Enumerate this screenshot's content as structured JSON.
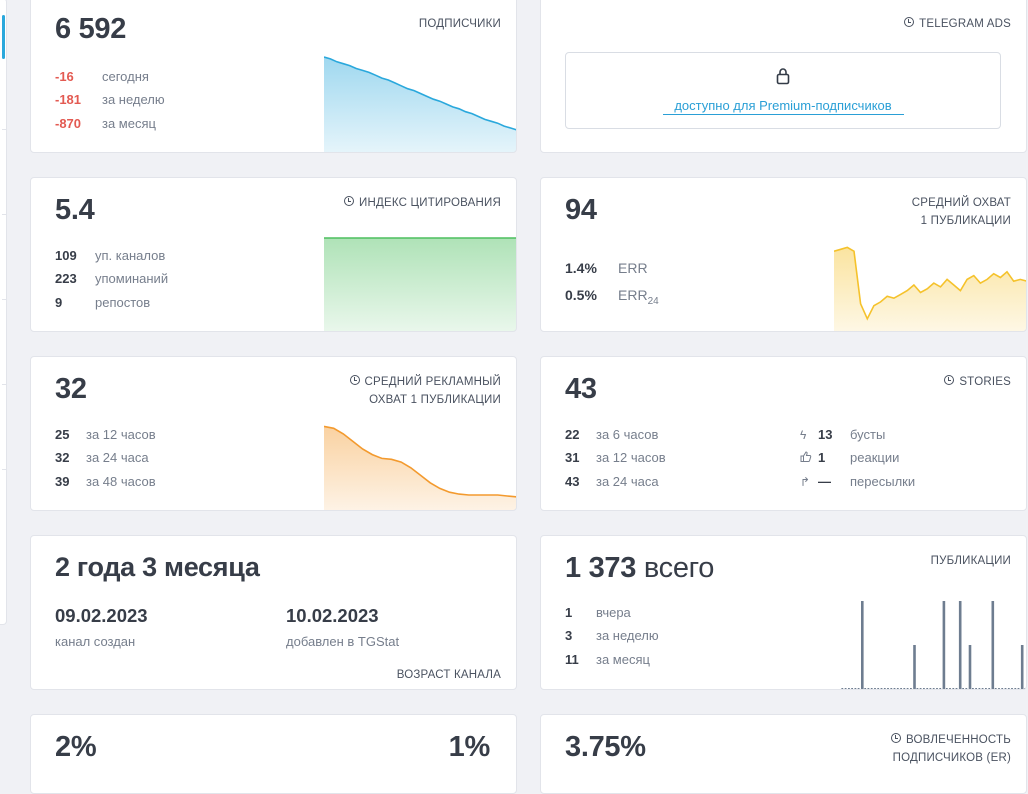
{
  "subscribers": {
    "value": "6 592",
    "tag": "ПОДПИСЧИКИ",
    "stats": [
      {
        "n": "-16",
        "label": "сегодня"
      },
      {
        "n": "-181",
        "label": "за неделю"
      },
      {
        "n": "-870",
        "label": "за месяц"
      }
    ],
    "color": "#2aa8dc"
  },
  "telegram_ads": {
    "tag": "TELEGRAM ADS",
    "lock_text": "доступно для Premium-подписчиков",
    "icon": "lock-icon"
  },
  "citation": {
    "value": "5.4",
    "tag": "ИНДЕКС ЦИТИРОВАНИЯ",
    "stats": [
      {
        "n": "109",
        "label": "уп. каналов"
      },
      {
        "n": "223",
        "label": "упоминаний"
      },
      {
        "n": "9",
        "label": "репостов"
      }
    ],
    "color": "#4dbf5f"
  },
  "avg_reach": {
    "value": "94",
    "tag_line1": "СРЕДНИЙ ОХВАТ",
    "tag_line2": "1 ПУБЛИКАЦИИ",
    "stats": [
      {
        "n": "1.4%",
        "label": "ERR"
      },
      {
        "n": "0.5%",
        "label": "ERR",
        "sub": "24"
      }
    ],
    "color": "#f5c22b"
  },
  "ad_reach": {
    "value": "32",
    "tag_line1": "СРЕДНИЙ РЕКЛАМНЫЙ",
    "tag_line2": "ОХВАТ 1 ПУБЛИКАЦИИ",
    "stats": [
      {
        "n": "25",
        "label": "за 12 часов"
      },
      {
        "n": "32",
        "label": "за 24 часа"
      },
      {
        "n": "39",
        "label": "за 48 часов"
      }
    ],
    "color": "#f39a2e"
  },
  "stories": {
    "value": "43",
    "tag": "STORIES",
    "stats": [
      {
        "n": "22",
        "label": "за 6 часов"
      },
      {
        "n": "31",
        "label": "за 12 часов"
      },
      {
        "n": "43",
        "label": "за 24 часа"
      }
    ],
    "extra": [
      {
        "icon": "lightning-icon",
        "n": "13",
        "label": "бусты"
      },
      {
        "icon": "thumbs-up-icon",
        "n": "1",
        "label": "реакции"
      },
      {
        "icon": "forward-arrow-icon",
        "n": "—",
        "label": "пересылки"
      }
    ]
  },
  "age": {
    "value": "2 года 3 месяца",
    "created_date": "09.02.2023",
    "created_label": "канал создан",
    "added_date": "10.02.2023",
    "added_label": "добавлен в TGStat",
    "tag": "ВОЗРАСТ КАНАЛА"
  },
  "posts": {
    "value": "1 373",
    "value_suffix": "всего",
    "tag": "ПУБЛИКАЦИИ",
    "stats": [
      {
        "n": "1",
        "label": "вчера"
      },
      {
        "n": "3",
        "label": "за неделю"
      },
      {
        "n": "11",
        "label": "за месяц"
      }
    ],
    "color": "#6e7d90"
  },
  "bottom_left": {
    "value_left": "2%",
    "value_right": "1%"
  },
  "engagement": {
    "value": "3.75%",
    "tag_line1": "ВОВЛЕЧЕННОСТЬ",
    "tag_line2": "ПОДПИСЧИКОВ (ER)"
  },
  "chart_data": [
    {
      "type": "area",
      "title": "",
      "series": [
        {
          "values": [
            100,
            98,
            95,
            93,
            91,
            88,
            86,
            84,
            81,
            78,
            76,
            73,
            70,
            67,
            65,
            62,
            59,
            56,
            54,
            51,
            48,
            46,
            43,
            41,
            38,
            35,
            33,
            31,
            28,
            26,
            24
          ]
        }
      ]
    },
    {
      "type": "area",
      "title": "",
      "series": [
        {
          "values": [
            100,
            100,
            100,
            100,
            100,
            100,
            100,
            100,
            100,
            100,
            100,
            100
          ]
        }
      ]
    },
    {
      "type": "area",
      "title": "",
      "series": [
        {
          "values": [
            86,
            88,
            90,
            86,
            30,
            14,
            28,
            32,
            38,
            36,
            40,
            44,
            50,
            42,
            46,
            52,
            48,
            56,
            50,
            44,
            56,
            60,
            52,
            56,
            62,
            58,
            64,
            54,
            56,
            54
          ]
        }
      ]
    },
    {
      "type": "area",
      "title": "",
      "series": [
        {
          "values": [
            90,
            88,
            82,
            74,
            66,
            60,
            56,
            55,
            52,
            46,
            38,
            30,
            24,
            20,
            18,
            17,
            17,
            17,
            17,
            16,
            15
          ]
        }
      ]
    },
    {
      "type": "bar",
      "title": "",
      "values": [
        0,
        0,
        0,
        0,
        0,
        0,
        1,
        0,
        0,
        0,
        0,
        0,
        0,
        0,
        0,
        0,
        0,
        0,
        0,
        0,
        0,
        0,
        0.5,
        0,
        0,
        0,
        0,
        0,
        0,
        0,
        0,
        1,
        0,
        0,
        0,
        0,
        1,
        0,
        0,
        0.5,
        0,
        0,
        0,
        0,
        0,
        0,
        1,
        0,
        0,
        0,
        0,
        0,
        0,
        0,
        0,
        0.5,
        0
      ]
    }
  ]
}
